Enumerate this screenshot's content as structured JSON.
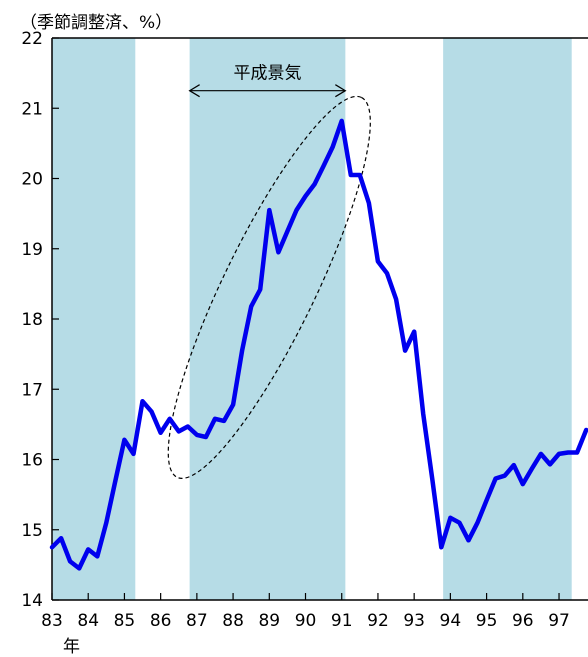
{
  "chart_data": {
    "type": "line",
    "unit_label": "（季節調整済、%）",
    "xlabel": "年",
    "ylabel": "",
    "ylim": [
      14,
      22
    ],
    "xlim": [
      1983,
      1997.8
    ],
    "y_ticks": [
      14,
      15,
      16,
      17,
      18,
      19,
      20,
      21,
      22
    ],
    "x_ticks": [
      {
        "value": 1983,
        "label": "83"
      },
      {
        "value": 1984,
        "label": "84"
      },
      {
        "value": 1985,
        "label": "85"
      },
      {
        "value": 1986,
        "label": "86"
      },
      {
        "value": 1987,
        "label": "87"
      },
      {
        "value": 1988,
        "label": "88"
      },
      {
        "value": 1989,
        "label": "89"
      },
      {
        "value": 1990,
        "label": "90"
      },
      {
        "value": 1991,
        "label": "91"
      },
      {
        "value": 1992,
        "label": "92"
      },
      {
        "value": 1993,
        "label": "93"
      },
      {
        "value": 1994,
        "label": "94"
      },
      {
        "value": 1995,
        "label": "95"
      },
      {
        "value": 1996,
        "label": "96"
      },
      {
        "value": 1997,
        "label": "97"
      }
    ],
    "shaded_periods": [
      {
        "start": 1983.0,
        "end": 1985.3
      },
      {
        "start": 1986.8,
        "end": 1991.1
      },
      {
        "start": 1993.8,
        "end": 1997.35
      }
    ],
    "annotation": {
      "text": "平成景気",
      "start": 1986.8,
      "end": 1991.1,
      "y": 21.25,
      "ellipse": {
        "start": 1986.6,
        "end": 1991.4,
        "low": 15.9,
        "high": 21.0
      }
    },
    "series": [
      {
        "color": "#0000ee",
        "points": [
          [
            1983.0,
            14.75
          ],
          [
            1983.25,
            14.88
          ],
          [
            1983.5,
            14.55
          ],
          [
            1983.75,
            14.45
          ],
          [
            1984.0,
            14.72
          ],
          [
            1984.25,
            14.62
          ],
          [
            1984.5,
            15.1
          ],
          [
            1984.75,
            15.7
          ],
          [
            1985.0,
            16.28
          ],
          [
            1985.25,
            16.08
          ],
          [
            1985.5,
            16.83
          ],
          [
            1985.75,
            16.68
          ],
          [
            1986.0,
            16.38
          ],
          [
            1986.25,
            16.58
          ],
          [
            1986.5,
            16.4
          ],
          [
            1986.75,
            16.47
          ],
          [
            1987.0,
            16.35
          ],
          [
            1987.25,
            16.32
          ],
          [
            1987.5,
            16.58
          ],
          [
            1987.75,
            16.55
          ],
          [
            1988.0,
            16.78
          ],
          [
            1988.25,
            17.55
          ],
          [
            1988.5,
            18.18
          ],
          [
            1988.75,
            18.42
          ],
          [
            1989.0,
            19.55
          ],
          [
            1989.25,
            18.95
          ],
          [
            1989.5,
            19.25
          ],
          [
            1989.75,
            19.55
          ],
          [
            1990.0,
            19.75
          ],
          [
            1990.25,
            19.92
          ],
          [
            1990.5,
            20.18
          ],
          [
            1990.75,
            20.45
          ],
          [
            1991.0,
            20.82
          ],
          [
            1991.25,
            20.05
          ],
          [
            1991.5,
            20.05
          ],
          [
            1991.75,
            19.65
          ],
          [
            1992.0,
            18.82
          ],
          [
            1992.25,
            18.65
          ],
          [
            1992.5,
            18.28
          ],
          [
            1992.75,
            17.55
          ],
          [
            1993.0,
            17.82
          ],
          [
            1993.25,
            16.65
          ],
          [
            1993.5,
            15.72
          ],
          [
            1993.75,
            14.75
          ],
          [
            1994.0,
            15.17
          ],
          [
            1994.25,
            15.1
          ],
          [
            1994.5,
            14.85
          ],
          [
            1994.75,
            15.1
          ],
          [
            1995.0,
            15.42
          ],
          [
            1995.25,
            15.73
          ],
          [
            1995.5,
            15.77
          ],
          [
            1995.75,
            15.92
          ],
          [
            1996.0,
            15.65
          ],
          [
            1996.25,
            15.87
          ],
          [
            1996.5,
            16.08
          ],
          [
            1996.75,
            15.93
          ],
          [
            1997.0,
            16.08
          ],
          [
            1997.25,
            16.1
          ],
          [
            1997.5,
            16.1
          ],
          [
            1997.75,
            16.42
          ]
        ]
      }
    ]
  }
}
